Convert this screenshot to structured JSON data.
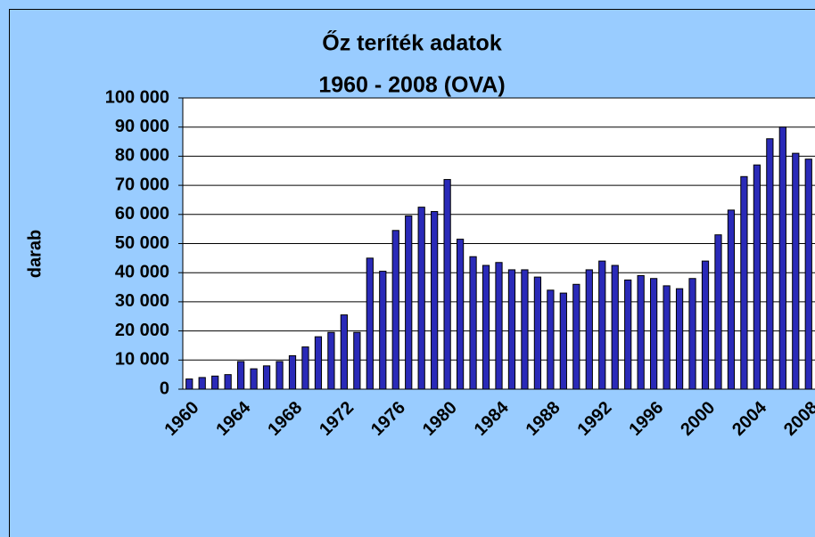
{
  "chart_data": {
    "type": "bar",
    "title": "Őz teríték adatok",
    "subtitle": "1960 - 2008 (OVA)",
    "y_label": "darab",
    "categories": [
      "1960",
      null,
      null,
      null,
      "1964",
      null,
      null,
      null,
      "1968",
      null,
      null,
      null,
      "1972",
      null,
      null,
      null,
      "1976",
      null,
      null,
      null,
      "1980",
      null,
      null,
      null,
      "1984",
      null,
      null,
      null,
      "1988",
      null,
      null,
      null,
      "1992",
      null,
      null,
      null,
      "1996",
      null,
      null,
      null,
      "2000",
      null,
      null,
      null,
      "2004",
      null,
      null,
      null,
      "2008"
    ],
    "values": [
      3500,
      4000,
      4500,
      5000,
      9500,
      7000,
      8000,
      9500,
      11500,
      14500,
      18000,
      19500,
      25500,
      19500,
      45000,
      40500,
      54500,
      59500,
      62500,
      61000,
      72000,
      51500,
      45500,
      42500,
      43500,
      41000,
      41000,
      38500,
      34000,
      33000,
      36000,
      41000,
      44000,
      42500,
      37500,
      39000,
      38000,
      35500,
      34500,
      38000,
      44000,
      53000,
      61500,
      73000,
      77000,
      86000,
      90000,
      81000,
      79000
    ],
    "color": "#2a2ab8",
    "ylim": [
      0,
      100000
    ],
    "yticks": [
      0,
      {
        "value": 10000,
        "label": "10 000"
      },
      {
        "value": 20000,
        "label": "20 000"
      },
      {
        "value": 30000,
        "label": "30 000"
      },
      {
        "value": 40000,
        "label": "40 000"
      },
      {
        "value": 50000,
        "label": "50 000"
      },
      {
        "value": 60000,
        "label": "60 000"
      },
      {
        "value": 70000,
        "label": "70 000"
      },
      {
        "value": 80000,
        "label": "80 000"
      },
      {
        "value": 90000,
        "label": "90 000"
      },
      {
        "value": 100000,
        "label": "100 000"
      }
    ],
    "grid": true
  }
}
